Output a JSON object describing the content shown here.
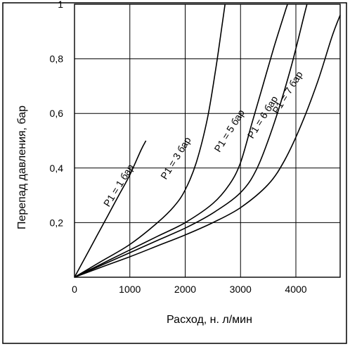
{
  "chart_data": {
    "type": "line",
    "xlabel": "Расход, н. л/мин",
    "ylabel": "Перепад давления, бар",
    "xlim": [
      0,
      4800
    ],
    "ylim": [
      0,
      1
    ],
    "grid": true,
    "x_ticks": [
      {
        "value": 0,
        "label": "0"
      },
      {
        "value": 1000,
        "label": "1000"
      },
      {
        "value": 2000,
        "label": "2000"
      },
      {
        "value": 3000,
        "label": "3000"
      },
      {
        "value": 4000,
        "label": "4000"
      }
    ],
    "y_ticks": [
      {
        "value": 0.2,
        "label": "0,2"
      },
      {
        "value": 0.4,
        "label": "0,4"
      },
      {
        "value": 0.6,
        "label": "0,6"
      },
      {
        "value": 0.8,
        "label": "0,8"
      },
      {
        "value": 1,
        "label": "1"
      }
    ],
    "series": [
      {
        "name": "P1 = 1 бар",
        "label_at": [
          850,
          0.33
        ],
        "points": [
          [
            0,
            0
          ],
          [
            200,
            0.075
          ],
          [
            400,
            0.15
          ],
          [
            600,
            0.225
          ],
          [
            800,
            0.3
          ],
          [
            1000,
            0.375
          ],
          [
            1200,
            0.465
          ],
          [
            1290,
            0.5
          ]
        ]
      },
      {
        "name": "P1 = 3 бар",
        "label_at": [
          1880,
          0.43
        ],
        "points": [
          [
            0,
            0
          ],
          [
            500,
            0.06
          ],
          [
            1000,
            0.12
          ],
          [
            1500,
            0.2
          ],
          [
            1800,
            0.26
          ],
          [
            2000,
            0.32
          ],
          [
            2200,
            0.42
          ],
          [
            2400,
            0.58
          ],
          [
            2550,
            0.76
          ],
          [
            2650,
            0.9
          ],
          [
            2720,
            1.0
          ]
        ]
      },
      {
        "name": "P1 = 5 бар",
        "label_at": [
          2850,
          0.53
        ],
        "points": [
          [
            0,
            0
          ],
          [
            500,
            0.05
          ],
          [
            1000,
            0.1
          ],
          [
            1500,
            0.15
          ],
          [
            2000,
            0.2
          ],
          [
            2500,
            0.27
          ],
          [
            2800,
            0.34
          ],
          [
            3000,
            0.42
          ],
          [
            3200,
            0.56
          ],
          [
            3400,
            0.7
          ],
          [
            3600,
            0.84
          ],
          [
            3800,
            0.97
          ],
          [
            3850,
            1.0
          ]
        ]
      },
      {
        "name": "P1 = 6 бар",
        "label_at": [
          3450,
          0.58
        ],
        "points": [
          [
            0,
            0
          ],
          [
            500,
            0.045
          ],
          [
            1000,
            0.09
          ],
          [
            1500,
            0.135
          ],
          [
            2000,
            0.18
          ],
          [
            2500,
            0.235
          ],
          [
            3000,
            0.31
          ],
          [
            3300,
            0.4
          ],
          [
            3600,
            0.56
          ],
          [
            3900,
            0.76
          ],
          [
            4150,
            0.96
          ],
          [
            4200,
            1.0
          ]
        ]
      },
      {
        "name": "P1 = 7 бар",
        "label_at": [
          3900,
          0.67
        ],
        "points": [
          [
            0,
            0
          ],
          [
            500,
            0.038
          ],
          [
            1000,
            0.075
          ],
          [
            1500,
            0.115
          ],
          [
            2000,
            0.155
          ],
          [
            2500,
            0.2
          ],
          [
            3000,
            0.255
          ],
          [
            3500,
            0.34
          ],
          [
            3800,
            0.43
          ],
          [
            4100,
            0.56
          ],
          [
            4400,
            0.72
          ],
          [
            4650,
            0.88
          ],
          [
            4800,
            0.96
          ]
        ]
      }
    ]
  }
}
